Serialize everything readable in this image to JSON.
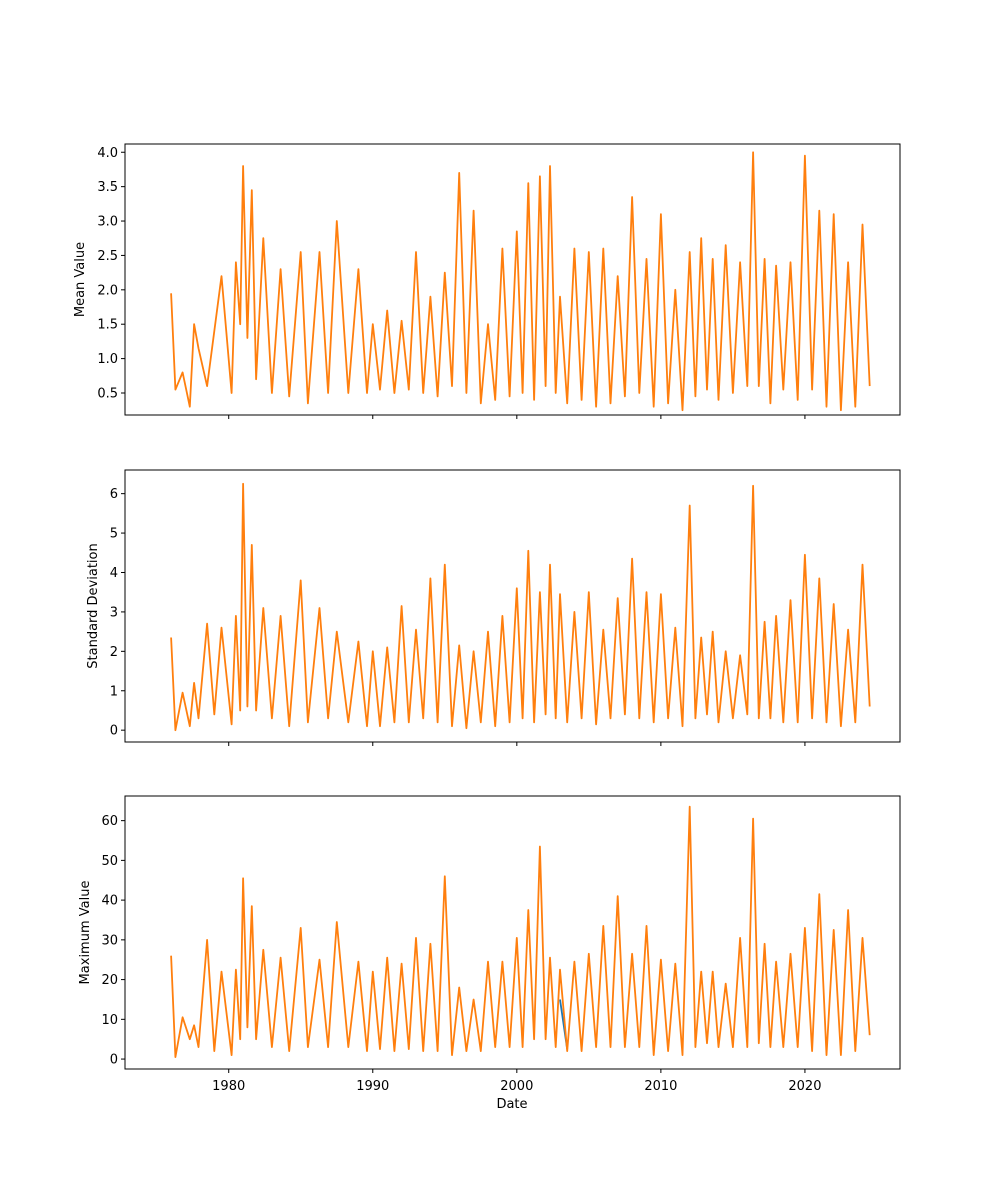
{
  "figure": {
    "shared_xlabel": "Date",
    "x_ticks": [
      "1980",
      "1990",
      "2000",
      "2010",
      "2020"
    ],
    "colors": {
      "series_1": "#1f77b4",
      "series_2": "#ff7f0e"
    }
  },
  "chart_data": [
    {
      "type": "line",
      "title": "",
      "xlabel": "",
      "ylabel": "Mean Value",
      "xlim": [
        1972.8,
        2026.6
      ],
      "ylim": [
        0.18,
        4.12
      ],
      "grid": false,
      "y_ticks": [
        0.5,
        1.0,
        1.5,
        2.0,
        2.5,
        3.0,
        3.5,
        4.0
      ],
      "y_tick_labels": [
        "0.5",
        "1.0",
        "1.5",
        "2.0",
        "2.5",
        "3.0",
        "3.5",
        "4.0"
      ],
      "x": [
        1976.0,
        1976.3,
        1976.8,
        1977.3,
        1977.6,
        1977.9,
        1978.5,
        1979.0,
        1979.5,
        1980.2,
        1980.5,
        1980.8,
        1981.0,
        1981.3,
        1981.6,
        1981.9,
        1982.4,
        1983.0,
        1983.6,
        1984.2,
        1985.0,
        1985.5,
        1986.3,
        1986.9,
        1987.5,
        1988.3,
        1989.0,
        1989.6,
        1990.0,
        1990.5,
        1991.0,
        1991.5,
        1992.0,
        1992.5,
        1993.0,
        1993.5,
        1994.0,
        1994.5,
        1995.0,
        1995.5,
        1996.0,
        1996.5,
        1997.0,
        1997.5,
        1998.0,
        1998.5,
        1999.0,
        1999.5,
        2000.0,
        2000.4,
        2000.8,
        2001.2,
        2001.6,
        2002.0,
        2002.3,
        2002.7,
        2003.0,
        2003.5,
        2004.0,
        2004.5,
        2005.0,
        2005.5,
        2006.0,
        2006.5,
        2007.0,
        2007.5,
        2008.0,
        2008.5,
        2009.0,
        2009.5,
        2010.0,
        2010.5,
        2011.0,
        2011.5,
        2012.0,
        2012.4,
        2012.8,
        2013.2,
        2013.6,
        2014.0,
        2014.5,
        2015.0,
        2015.5,
        2016.0,
        2016.4,
        2016.8,
        2017.2,
        2017.6,
        2018.0,
        2018.5,
        2019.0,
        2019.5,
        2020.0,
        2020.5,
        2021.0,
        2021.5,
        2022.0,
        2022.5,
        2023.0,
        2023.5,
        2024.0,
        2024.5
      ],
      "series": [
        {
          "values": [
            1.95,
            0.55,
            0.8,
            0.3,
            1.5,
            1.15,
            0.6,
            1.4,
            2.2,
            0.5,
            2.4,
            1.5,
            3.8,
            1.3,
            3.45,
            0.7,
            2.75,
            0.5,
            2.3,
            0.45,
            2.55,
            0.35,
            2.55,
            0.5,
            3.0,
            0.5,
            2.3,
            0.5,
            1.5,
            0.55,
            1.7,
            0.5,
            1.55,
            0.55,
            2.55,
            0.5,
            1.9,
            0.45,
            2.25,
            0.6,
            3.7,
            0.5,
            3.15,
            0.35,
            1.5,
            0.4,
            2.6,
            0.45,
            2.85,
            0.5,
            3.55,
            0.4,
            3.65,
            0.6,
            3.8,
            0.5,
            1.9,
            0.35,
            2.6,
            0.4,
            2.55,
            0.3,
            2.6,
            0.35,
            2.2,
            0.45,
            3.35,
            0.5,
            2.45,
            0.3,
            3.1,
            0.35,
            2.0,
            0.25,
            2.55,
            0.45,
            2.75,
            0.55,
            2.45,
            0.4,
            2.65,
            0.5,
            2.4,
            0.6,
            4.0,
            0.6,
            2.45,
            0.35,
            2.35,
            0.55,
            2.4,
            0.4,
            3.95,
            0.55,
            3.15,
            0.3,
            3.1,
            0.25,
            2.4,
            0.3,
            2.95,
            0.6
          ]
        }
      ]
    },
    {
      "type": "line",
      "title": "",
      "xlabel": "",
      "ylabel": "Standard Deviation",
      "xlim": [
        1972.8,
        2026.6
      ],
      "ylim": [
        -0.3,
        6.6
      ],
      "grid": false,
      "y_ticks": [
        0,
        1,
        2,
        3,
        4,
        5,
        6
      ],
      "y_tick_labels": [
        "0",
        "1",
        "2",
        "3",
        "4",
        "5",
        "6"
      ],
      "x": [
        1976.0,
        1976.3,
        1976.8,
        1977.3,
        1977.6,
        1977.9,
        1978.5,
        1979.0,
        1979.5,
        1980.2,
        1980.5,
        1980.8,
        1981.0,
        1981.3,
        1981.6,
        1981.9,
        1982.4,
        1983.0,
        1983.6,
        1984.2,
        1985.0,
        1985.5,
        1986.3,
        1986.9,
        1987.5,
        1988.3,
        1989.0,
        1989.6,
        1990.0,
        1990.5,
        1991.0,
        1991.5,
        1992.0,
        1992.5,
        1993.0,
        1993.5,
        1994.0,
        1994.5,
        1995.0,
        1995.5,
        1996.0,
        1996.5,
        1997.0,
        1997.5,
        1998.0,
        1998.5,
        1999.0,
        1999.5,
        2000.0,
        2000.4,
        2000.8,
        2001.2,
        2001.6,
        2002.0,
        2002.3,
        2002.7,
        2003.0,
        2003.5,
        2004.0,
        2004.5,
        2005.0,
        2005.5,
        2006.0,
        2006.5,
        2007.0,
        2007.5,
        2008.0,
        2008.5,
        2009.0,
        2009.5,
        2010.0,
        2010.5,
        2011.0,
        2011.5,
        2012.0,
        2012.4,
        2012.8,
        2013.2,
        2013.6,
        2014.0,
        2014.5,
        2015.0,
        2015.5,
        2016.0,
        2016.4,
        2016.8,
        2017.2,
        2017.6,
        2018.0,
        2018.5,
        2019.0,
        2019.5,
        2020.0,
        2020.5,
        2021.0,
        2021.5,
        2022.0,
        2022.5,
        2023.0,
        2023.5,
        2024.0,
        2024.5
      ],
      "series": [
        {
          "values": [
            2.35,
            0.0,
            0.95,
            0.1,
            1.2,
            0.3,
            2.7,
            0.4,
            2.6,
            0.15,
            2.9,
            0.5,
            6.25,
            0.6,
            4.7,
            0.5,
            3.1,
            0.3,
            2.9,
            0.1,
            3.8,
            0.2,
            3.1,
            0.3,
            2.5,
            0.2,
            2.25,
            0.1,
            2.0,
            0.1,
            2.1,
            0.2,
            3.15,
            0.2,
            2.55,
            0.3,
            3.85,
            0.2,
            4.2,
            0.1,
            2.15,
            0.05,
            2.0,
            0.2,
            2.5,
            0.1,
            2.9,
            0.2,
            3.6,
            0.3,
            4.55,
            0.2,
            3.5,
            0.4,
            4.2,
            0.3,
            3.45,
            0.2,
            3.0,
            0.3,
            3.5,
            0.15,
            2.55,
            0.3,
            3.35,
            0.4,
            4.35,
            0.3,
            3.5,
            0.2,
            3.45,
            0.3,
            2.6,
            0.1,
            5.7,
            0.3,
            2.35,
            0.4,
            2.5,
            0.2,
            2.0,
            0.3,
            1.9,
            0.4,
            6.2,
            0.3,
            2.75,
            0.3,
            2.9,
            0.2,
            3.3,
            0.2,
            4.45,
            0.3,
            3.85,
            0.2,
            3.2,
            0.1,
            2.55,
            0.2,
            4.2,
            0.6
          ]
        }
      ]
    },
    {
      "type": "line",
      "title": "",
      "xlabel": "Date",
      "ylabel": "Maximum Value",
      "xlim": [
        1972.8,
        2026.6
      ],
      "ylim": [
        -2.5,
        66.2
      ],
      "grid": false,
      "y_ticks": [
        0,
        10,
        20,
        30,
        40,
        50,
        60
      ],
      "y_tick_labels": [
        "0",
        "10",
        "20",
        "30",
        "40",
        "50",
        "60"
      ],
      "x": [
        1976.0,
        1976.3,
        1976.8,
        1977.3,
        1977.6,
        1977.9,
        1978.5,
        1979.0,
        1979.5,
        1980.2,
        1980.5,
        1980.8,
        1981.0,
        1981.3,
        1981.6,
        1981.9,
        1982.4,
        1983.0,
        1983.6,
        1984.2,
        1985.0,
        1985.5,
        1986.3,
        1986.9,
        1987.5,
        1988.3,
        1989.0,
        1989.6,
        1990.0,
        1990.5,
        1991.0,
        1991.5,
        1992.0,
        1992.5,
        1993.0,
        1993.5,
        1994.0,
        1994.5,
        1995.0,
        1995.5,
        1996.0,
        1996.5,
        1997.0,
        1997.5,
        1998.0,
        1998.5,
        1999.0,
        1999.5,
        2000.0,
        2000.4,
        2000.8,
        2001.2,
        2001.6,
        2002.0,
        2002.3,
        2002.7,
        2003.0,
        2003.5,
        2004.0,
        2004.5,
        2005.0,
        2005.5,
        2006.0,
        2006.5,
        2007.0,
        2007.5,
        2008.0,
        2008.5,
        2009.0,
        2009.5,
        2010.0,
        2010.5,
        2011.0,
        2011.5,
        2012.0,
        2012.4,
        2012.8,
        2013.2,
        2013.6,
        2014.0,
        2014.5,
        2015.0,
        2015.5,
        2016.0,
        2016.4,
        2016.8,
        2017.2,
        2017.6,
        2018.0,
        2018.5,
        2019.0,
        2019.5,
        2020.0,
        2020.5,
        2021.0,
        2021.5,
        2022.0,
        2022.5,
        2023.0,
        2023.5,
        2024.0,
        2024.5
      ],
      "series": [
        {
          "name": "",
          "values": [
            null,
            null,
            null,
            null,
            null,
            null,
            null,
            null,
            null,
            null,
            null,
            null,
            null,
            null,
            null,
            null,
            null,
            null,
            null,
            null,
            null,
            null,
            null,
            null,
            null,
            null,
            null,
            null,
            null,
            null,
            null,
            null,
            null,
            null,
            null,
            null,
            null,
            null,
            null,
            null,
            null,
            null,
            null,
            null,
            null,
            null,
            null,
            null,
            null,
            null,
            null,
            null,
            null,
            null,
            null,
            null,
            15.0,
            2.5,
            null,
            null,
            null,
            null,
            null,
            null,
            null,
            null,
            null,
            null,
            null,
            null,
            null,
            null,
            null,
            null,
            null,
            null,
            null,
            null,
            null,
            null,
            null,
            null,
            null,
            null,
            null,
            null,
            null,
            null,
            null,
            null,
            null,
            null,
            null,
            null,
            null,
            null,
            null,
            null,
            null,
            null,
            null,
            null
          ]
        },
        {
          "name": "",
          "values": [
            26.0,
            0.5,
            10.5,
            5.0,
            8.5,
            3.0,
            30.0,
            2.0,
            22.0,
            1.0,
            22.5,
            5.0,
            45.5,
            8.0,
            38.5,
            5.0,
            27.5,
            3.0,
            25.5,
            2.0,
            33.0,
            3.0,
            25.0,
            3.0,
            34.5,
            3.0,
            24.5,
            2.0,
            22.0,
            2.5,
            25.5,
            2.0,
            24.0,
            2.5,
            30.5,
            2.0,
            29.0,
            2.0,
            46.0,
            1.0,
            18.0,
            2.0,
            15.0,
            2.0,
            24.5,
            3.0,
            24.5,
            3.0,
            30.5,
            3.0,
            37.5,
            5.0,
            53.5,
            5.0,
            25.5,
            3.0,
            22.5,
            2.0,
            24.5,
            2.0,
            26.5,
            3.0,
            33.5,
            3.0,
            41.0,
            3.0,
            26.5,
            3.0,
            33.5,
            1.0,
            25.0,
            2.0,
            24.0,
            1.0,
            63.5,
            3.0,
            22.0,
            4.0,
            22.0,
            3.0,
            19.0,
            3.0,
            30.5,
            3.0,
            60.5,
            4.0,
            29.0,
            3.0,
            24.5,
            3.0,
            26.5,
            3.0,
            33.0,
            2.0,
            41.5,
            1.0,
            32.5,
            1.0,
            37.5,
            2.0,
            30.5,
            6.0
          ]
        }
      ]
    }
  ]
}
